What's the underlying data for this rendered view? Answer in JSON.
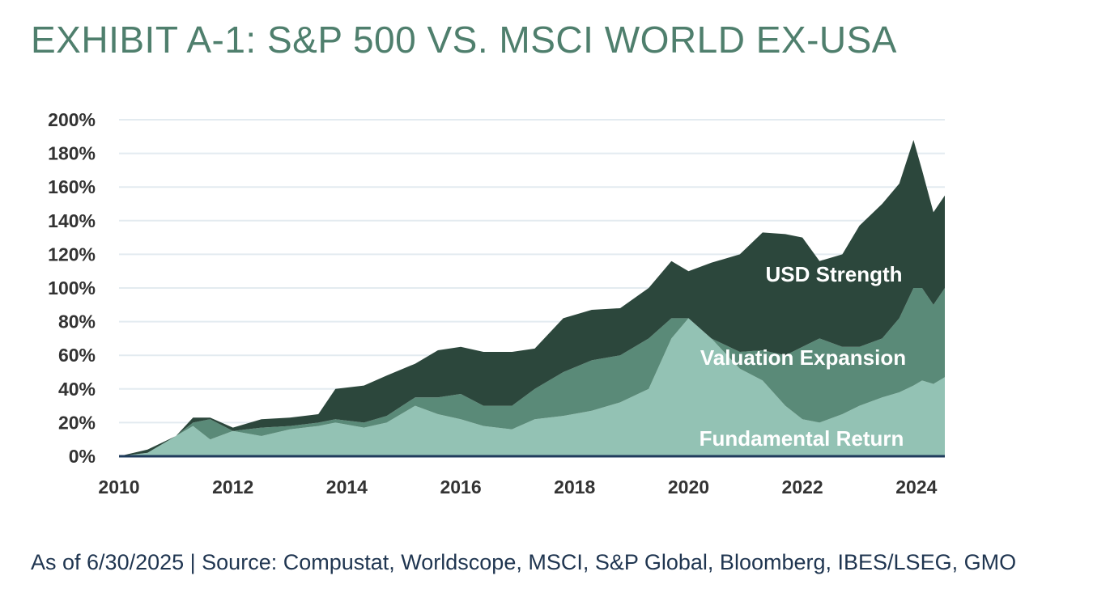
{
  "title": "EXHIBIT A-1: S&P 500 VS. MSCI WORLD EX-USA",
  "source_note": "As of 6/30/2025 | Source: Compustat, Worldscope, MSCI, S&P Global, Bloomberg, IBES/LSEG, GMO",
  "chart_data": {
    "type": "area",
    "stacked": true,
    "title": "",
    "xlabel": "",
    "ylabel": "",
    "x_ticks": [
      "2010",
      "2012",
      "2014",
      "2016",
      "2018",
      "2020",
      "2022",
      "2024"
    ],
    "y_ticks": [
      "0%",
      "20%",
      "40%",
      "60%",
      "80%",
      "100%",
      "120%",
      "140%",
      "160%",
      "180%",
      "200%"
    ],
    "xlim": [
      2010.0,
      2024.5
    ],
    "ylim": [
      0,
      200
    ],
    "grid": true,
    "x": [
      2010.0,
      2010.5,
      2011.0,
      2011.3,
      2011.6,
      2012.0,
      2012.5,
      2013.0,
      2013.5,
      2013.8,
      2014.3,
      2014.7,
      2015.2,
      2015.6,
      2016.0,
      2016.4,
      2016.9,
      2017.3,
      2017.8,
      2018.3,
      2018.8,
      2019.3,
      2019.7,
      2020.0,
      2020.4,
      2020.9,
      2021.3,
      2021.7,
      2022.0,
      2022.3,
      2022.7,
      2023.0,
      2023.4,
      2023.7,
      2023.95,
      2024.1,
      2024.3,
      2024.5
    ],
    "series": [
      {
        "name": "Fundamental Return",
        "color": "#93c2b4",
        "values": [
          0,
          2,
          12,
          18,
          10,
          15,
          12,
          16,
          18,
          20,
          17,
          20,
          30,
          25,
          22,
          18,
          16,
          22,
          24,
          27,
          32,
          40,
          70,
          82,
          70,
          52,
          45,
          30,
          22,
          20,
          25,
          30,
          35,
          38,
          42,
          45,
          43,
          47
        ]
      },
      {
        "name": "Valuation Expansion",
        "color": "#5a8a78",
        "values": [
          0,
          0,
          0,
          2,
          12,
          0,
          5,
          2,
          2,
          2,
          3,
          4,
          5,
          10,
          15,
          12,
          14,
          18,
          26,
          30,
          28,
          30,
          12,
          0,
          0,
          10,
          18,
          30,
          43,
          50,
          40,
          35,
          35,
          44,
          58,
          55,
          47,
          53
        ]
      },
      {
        "name": "USD Strength",
        "color": "#2c473c",
        "values": [
          0,
          2,
          0,
          3,
          1,
          2,
          5,
          5,
          5,
          18,
          22,
          24,
          20,
          28,
          28,
          32,
          32,
          24,
          32,
          30,
          28,
          30,
          34,
          28,
          45,
          58,
          70,
          72,
          65,
          46,
          55,
          72,
          80,
          80,
          88,
          70,
          55,
          55
        ]
      }
    ],
    "annotations": [
      "USD Strength",
      "Valuation Expansion",
      "Fundamental Return"
    ]
  }
}
